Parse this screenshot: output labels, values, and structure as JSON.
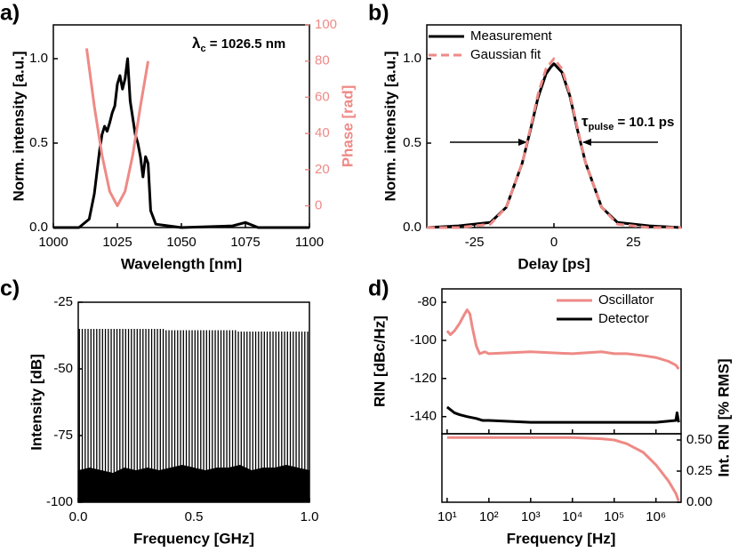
{
  "chart_data": [
    {
      "type": "line",
      "panel_label": "a)",
      "xlabel": "Wavelength [nm]",
      "ylabel": "Norm. intensity [a.u.]",
      "y2label": "Phase [rad]",
      "y2color": "#ee8a86",
      "xlim": [
        1000,
        1100
      ],
      "xticks": [
        1000,
        1025,
        1050,
        1075,
        1100
      ],
      "ylim": [
        0,
        1.2
      ],
      "yticks": [
        {
          "value": 0,
          "label": "0.0"
        },
        {
          "value": 0.5,
          "label": "0.5"
        },
        {
          "value": 1,
          "label": "1.0"
        }
      ],
      "y2lim": [
        -12,
        100
      ],
      "y2ticks": [
        0,
        20,
        40,
        60,
        80,
        100
      ],
      "annotation": {
        "symbol": "λ",
        "subscript": "c",
        "text": " = 1026.5 nm"
      },
      "series": [
        {
          "color": "#000000",
          "x": [
            1000,
            1010,
            1014,
            1016,
            1018,
            1019,
            1020,
            1021,
            1022,
            1023,
            1024,
            1025,
            1026,
            1027,
            1028,
            1029,
            1030,
            1031,
            1032,
            1033,
            1034,
            1035,
            1036,
            1037,
            1038,
            1040,
            1045,
            1050,
            1070,
            1075,
            1080,
            1100
          ],
          "values": [
            0,
            0,
            0.05,
            0.2,
            0.45,
            0.55,
            0.6,
            0.57,
            0.62,
            0.68,
            0.72,
            0.85,
            0.9,
            0.82,
            0.88,
            1.0,
            0.75,
            0.65,
            0.55,
            0.5,
            0.42,
            0.3,
            0.42,
            0.38,
            0.1,
            0.02,
            0.01,
            0,
            0.01,
            0.03,
            0,
            0
          ]
        },
        {
          "color": "#ee8a86",
          "axis": "y2",
          "x": [
            1013,
            1016,
            1019,
            1022,
            1025,
            1028,
            1031,
            1034,
            1037
          ],
          "values": [
            87,
            55,
            28,
            8,
            0,
            8,
            28,
            55,
            80
          ]
        }
      ]
    },
    {
      "type": "line",
      "panel_label": "b)",
      "xlabel": "Delay [ps]",
      "ylabel": "Norm. intensity [a.u.]",
      "legend": "upper left",
      "xlim": [
        -40,
        40
      ],
      "xticks": [
        -25,
        0,
        25
      ],
      "ylim": [
        0,
        1.2
      ],
      "yticks": [
        {
          "value": 0,
          "label": "0.0"
        },
        {
          "value": 0.5,
          "label": "0.5"
        },
        {
          "value": 1,
          "label": "1.0"
        }
      ],
      "annotation": {
        "symbol": "τ",
        "subscript": "pulse",
        "text": " = 10.1 ps"
      },
      "series": [
        {
          "name": "Measurement",
          "color": "#000000",
          "x": [
            -40,
            -30,
            -20,
            -15,
            -10,
            -7.5,
            -5,
            -2.5,
            -1,
            0,
            1,
            2.5,
            5,
            7.5,
            10,
            15,
            20,
            30,
            40
          ],
          "values": [
            0,
            0.01,
            0.03,
            0.12,
            0.38,
            0.57,
            0.77,
            0.91,
            0.95,
            0.97,
            0.95,
            0.92,
            0.78,
            0.57,
            0.38,
            0.12,
            0.03,
            0.01,
            0
          ]
        },
        {
          "name": "Gaussian fit",
          "color": "#ee8a86",
          "dashed": true,
          "x": [
            -40,
            -30,
            -20,
            -15,
            -10,
            -7.5,
            -5,
            -2.5,
            0,
            2.5,
            5,
            7.5,
            10,
            15,
            20,
            30,
            40
          ],
          "values": [
            0,
            0,
            0.02,
            0.12,
            0.38,
            0.58,
            0.79,
            0.94,
            1,
            0.94,
            0.79,
            0.58,
            0.38,
            0.12,
            0.02,
            0,
            0
          ]
        }
      ]
    },
    {
      "type": "stem",
      "panel_label": "c)",
      "xlabel": "Frequency [GHz]",
      "ylabel": "Intensity [dB]",
      "color": "#000000",
      "xlim": [
        0,
        1
      ],
      "xticks": [
        {
          "value": 0,
          "label": "0.0"
        },
        {
          "value": 0.5,
          "label": "0.5"
        },
        {
          "value": 1,
          "label": "1.0"
        }
      ],
      "ylim": [
        -100,
        -25
      ],
      "yticks": [
        -25,
        -50,
        -75,
        -100
      ],
      "lines": {
        "x": [
          0.005,
          0.0175,
          0.03,
          0.0425,
          0.055,
          0.0675,
          0.08,
          0.0925,
          0.105,
          0.1175,
          0.13,
          0.1425,
          0.155,
          0.1675,
          0.18,
          0.1925,
          0.205,
          0.2175,
          0.23,
          0.2425,
          0.255,
          0.2675,
          0.28,
          0.2925,
          0.305,
          0.3175,
          0.33,
          0.3425,
          0.355,
          0.3675,
          0.38,
          0.3925,
          0.405,
          0.4175,
          0.43,
          0.4425,
          0.455,
          0.4675,
          0.48,
          0.4925,
          0.505,
          0.5175,
          0.53,
          0.5425,
          0.555,
          0.5675,
          0.58,
          0.5925,
          0.605,
          0.6175,
          0.63,
          0.6425,
          0.655,
          0.6675,
          0.68,
          0.6925,
          0.705,
          0.7175,
          0.73,
          0.7425,
          0.755,
          0.7675,
          0.78,
          0.7925,
          0.805,
          0.8175,
          0.83,
          0.8425,
          0.855,
          0.8675,
          0.88,
          0.8925,
          0.905,
          0.9175,
          0.93,
          0.9425,
          0.955,
          0.9675,
          0.98,
          0.9925
        ],
        "values": [
          -35,
          -35,
          -35,
          -35,
          -35,
          -35,
          -35,
          -35,
          -35,
          -35,
          -35,
          -35,
          -35,
          -35,
          -35,
          -35,
          -35,
          -35,
          -35,
          -35,
          -35,
          -35,
          -35,
          -35,
          -35,
          -35,
          -35,
          -35,
          -35,
          -35,
          -35.5,
          -35.5,
          -35.5,
          -35.5,
          -35.5,
          -35.5,
          -35.5,
          -35.5,
          -35.5,
          -35.5,
          -35.5,
          -35.5,
          -35.5,
          -35.5,
          -35.5,
          -35.5,
          -35.5,
          -35.5,
          -35.5,
          -35.5,
          -35.5,
          -35.5,
          -35.5,
          -35.5,
          -35.5,
          -36,
          -36,
          -36,
          -36,
          -36,
          -36,
          -36,
          -36,
          -36,
          -36,
          -36,
          -36,
          -36,
          -36,
          -36,
          -36,
          -36,
          -36,
          -36,
          -36,
          -36,
          -36,
          -36,
          -36,
          -36
        ]
      },
      "floor": {
        "x": [
          0,
          0.05,
          0.1,
          0.15,
          0.2,
          0.25,
          0.3,
          0.35,
          0.4,
          0.45,
          0.5,
          0.55,
          0.6,
          0.65,
          0.7,
          0.75,
          0.8,
          0.85,
          0.9,
          0.95,
          1
        ],
        "values": [
          -88,
          -87,
          -88,
          -89,
          -87,
          -88,
          -87,
          -88,
          -87,
          -86,
          -87,
          -88,
          -87,
          -87,
          -86,
          -88,
          -87,
          -87,
          -86,
          -87,
          -88
        ]
      }
    },
    {
      "type": "line",
      "panel_label": "d)",
      "ylabel": "RIN [dBc/Hz]",
      "legend": "upper right",
      "xlog": true,
      "xlim": [
        7.5,
        4000000
      ],
      "ylim": [
        -149,
        -73
      ],
      "yticks": [
        -80,
        -100,
        -120,
        -140
      ],
      "series": [
        {
          "name": "Oscillator",
          "color": "#ee8a86",
          "x": [
            10,
            12,
            15,
            20,
            25,
            30,
            35,
            40,
            50,
            60,
            80,
            100,
            1000,
            10000,
            50000,
            100000,
            200000,
            500000,
            1000000,
            2000000,
            3000000,
            3500000
          ],
          "values": [
            -95,
            -97,
            -95,
            -91,
            -87,
            -84,
            -86,
            -93,
            -103,
            -107,
            -106,
            -107,
            -106,
            -107,
            -106,
            -107,
            -107,
            -108,
            -109,
            -111,
            -113,
            -115
          ]
        },
        {
          "name": "Detector",
          "color": "#000000",
          "x": [
            10,
            15,
            20,
            30,
            50,
            70,
            100,
            1000,
            10000,
            100000,
            1000000,
            3000000,
            3200000,
            3500000
          ],
          "values": [
            -135,
            -138,
            -139,
            -140,
            -141,
            -142,
            -142,
            -143,
            -143,
            -143,
            -143,
            -142,
            -138,
            -143
          ]
        }
      ]
    },
    {
      "type": "line",
      "xlabel": "Frequency [Hz]",
      "y2label": "Int. RIN [% RMS]",
      "xlog": true,
      "xlim": [
        7.5,
        4000000
      ],
      "xticks": [
        {
          "value": 10,
          "label": "10¹"
        },
        {
          "value": 100,
          "label": "10²"
        },
        {
          "value": 1000,
          "label": "10³"
        },
        {
          "value": 10000,
          "label": "10⁴"
        },
        {
          "value": 100000,
          "label": "10⁵"
        },
        {
          "value": 1000000,
          "label": "10⁶"
        }
      ],
      "y2lim": [
        0,
        0.55
      ],
      "y2ticks": [
        {
          "value": 0,
          "label": "0.00"
        },
        {
          "value": 0.25,
          "label": "0.25"
        },
        {
          "value": 0.5,
          "label": "0.50"
        }
      ],
      "series": [
        {
          "color": "#ee8a86",
          "axis": "y2",
          "x": [
            10,
            100,
            1000,
            10000,
            50000,
            100000,
            200000,
            500000,
            1000000,
            2000000,
            3000000,
            3500000
          ],
          "values": [
            0.52,
            0.52,
            0.52,
            0.52,
            0.51,
            0.5,
            0.47,
            0.4,
            0.3,
            0.17,
            0.07,
            0.01
          ]
        }
      ]
    }
  ]
}
